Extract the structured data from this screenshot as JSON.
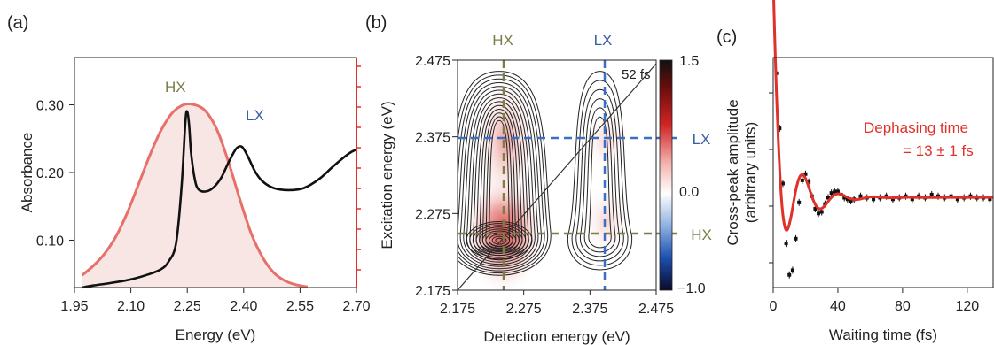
{
  "chart_data": [
    {
      "panel": "(a)",
      "type": "line",
      "xlabel": "Energy (eV)",
      "ylabel": "Absorbance",
      "xlim": [
        1.95,
        2.7
      ],
      "ylim": [
        0.03,
        0.37
      ],
      "xticks": [
        "1.95",
        "2.10",
        "2.25",
        "2.40",
        "2.55",
        "2.70"
      ],
      "yticks": [
        "0.10",
        "0.20",
        "0.30"
      ],
      "annotations": [
        "HX",
        "LX"
      ],
      "colors": {
        "absorbance": "#111111",
        "emission": "#e8706a",
        "emission_fill": "#f8e6e4",
        "HX": "#7d7d46",
        "LX": "#3b5da8",
        "right_axis": "#e0302a"
      },
      "series": [
        {
          "x": [
            1.97,
            2.0,
            2.05,
            2.1,
            2.15,
            2.18,
            2.2,
            2.22,
            2.235,
            2.245,
            2.25,
            2.255,
            2.26,
            2.27,
            2.28,
            2.3,
            2.32,
            2.34,
            2.36,
            2.38,
            2.395,
            2.41,
            2.43,
            2.45,
            2.48,
            2.52,
            2.56,
            2.6,
            2.64,
            2.68,
            2.7
          ],
          "y": [
            0.03,
            0.033,
            0.037,
            0.042,
            0.05,
            0.057,
            0.068,
            0.095,
            0.18,
            0.275,
            0.29,
            0.27,
            0.23,
            0.19,
            0.175,
            0.172,
            0.178,
            0.192,
            0.215,
            0.235,
            0.238,
            0.225,
            0.202,
            0.187,
            0.177,
            0.174,
            0.177,
            0.19,
            0.21,
            0.228,
            0.234
          ]
        },
        {
          "x": [
            1.97,
            2.0,
            2.03,
            2.06,
            2.09,
            2.12,
            2.15,
            2.18,
            2.21,
            2.24,
            2.27,
            2.3,
            2.33,
            2.36,
            2.39,
            2.42,
            2.45,
            2.48,
            2.51,
            2.54,
            2.57
          ],
          "y": [
            0.048,
            0.062,
            0.08,
            0.105,
            0.14,
            0.182,
            0.225,
            0.262,
            0.288,
            0.3,
            0.3,
            0.29,
            0.262,
            0.215,
            0.16,
            0.11,
            0.075,
            0.052,
            0.04,
            0.034,
            0.031
          ]
        }
      ]
    },
    {
      "panel": "(b)",
      "type": "heatmap",
      "xlabel": "Detection energy (eV)",
      "ylabel": "Excitation energy (eV)",
      "xlim": [
        2.175,
        2.475
      ],
      "ylim": [
        2.175,
        2.475
      ],
      "xticks": [
        "2.175",
        "2.275",
        "2.375",
        "2.475"
      ],
      "yticks": [
        "2.175",
        "2.275",
        "2.375",
        "2.475"
      ],
      "top_labels": [
        "HX",
        "LX"
      ],
      "right_labels": [
        "LX",
        "HX"
      ],
      "annotation": "52 fs",
      "colorbar_ticks": [
        "1.5",
        "0.0",
        "−1.0"
      ],
      "peaks": [
        {
          "x": 2.238,
          "y": 2.24,
          "amp": 1.3
        },
        {
          "x": 2.238,
          "y": 2.385,
          "amp": 0.75
        },
        {
          "x": 2.39,
          "y": 2.24,
          "amp": 0.28
        },
        {
          "x": 2.39,
          "y": 2.38,
          "amp": 0.22
        }
      ],
      "HX_energy": 2.24,
      "LX_energy": 2.382
    },
    {
      "panel": "(c)",
      "type": "line",
      "xlabel": "Waiting time (fs)",
      "ylabel": "Cross-peak amplitude\n(arbitrary units)",
      "xlim": [
        0,
        136
      ],
      "xticks": [
        "0",
        "40",
        "80",
        "120"
      ],
      "annotation": [
        "Dephasing time",
        "= 13 ± 1 fs"
      ],
      "colors": {
        "fit": "#e0302a",
        "data": "#111111"
      },
      "data_points": {
        "x": [
          2,
          4,
          6,
          8,
          10,
          12,
          14,
          16,
          18,
          20,
          22,
          24,
          26,
          28,
          30,
          32,
          34,
          36,
          38,
          40,
          42,
          44,
          46,
          48,
          50,
          54,
          58,
          62,
          66,
          70,
          74,
          78,
          82,
          86,
          90,
          94,
          98,
          102,
          106,
          110,
          114,
          118,
          122,
          126,
          130,
          134
        ],
        "y": [
          0.8,
          0.45,
          0.1,
          -0.28,
          -0.48,
          -0.45,
          -0.25,
          -0.02,
          0.12,
          0.16,
          0.11,
          0.02,
          -0.06,
          -0.09,
          -0.08,
          -0.03,
          0.01,
          0.04,
          0.05,
          0.05,
          0.03,
          0.01,
          0.0,
          -0.01,
          0.0,
          0.02,
          0.01,
          0.0,
          0.01,
          0.02,
          0.0,
          0.01,
          0.02,
          0.0,
          0.02,
          0.01,
          0.03,
          0.02,
          0.01,
          0.02,
          0.0,
          0.01,
          0.02,
          0.01,
          0.01,
          0.0
        ]
      },
      "fit": {
        "model": "damped_oscillation",
        "dephasing_fs": 13
      }
    }
  ],
  "panel_labels": [
    "(a)",
    "(b)",
    "(c)"
  ]
}
